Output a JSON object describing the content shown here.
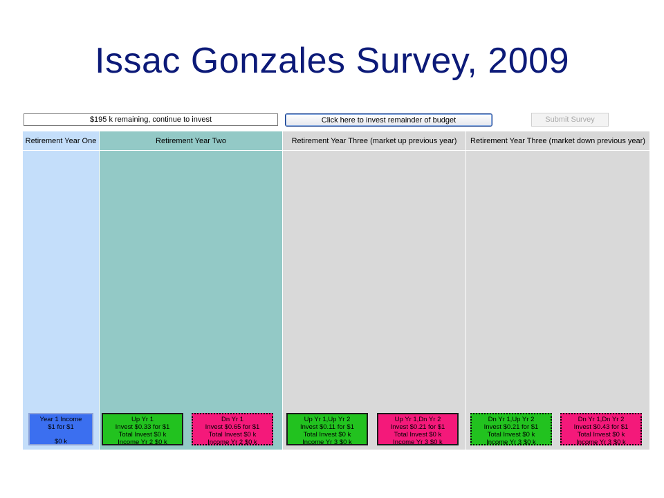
{
  "slide": {
    "title": "Issac Gonzales Survey, 2009"
  },
  "toolbar": {
    "remaining": "$195 k remaining, continue to invest",
    "invest_button": "Click here to invest remainder of budget",
    "submit_button": "Submit Survey"
  },
  "columns": [
    {
      "header": "Retirement Year One",
      "color": "#c4defa"
    },
    {
      "header": "Retirement Year Two",
      "color": "#93c9c6"
    },
    {
      "header": "Retirement Year Three (market up previous year)",
      "color": "#d9d9d9"
    },
    {
      "header": "Retirement Year Three (market down previous year)",
      "color": "#d9d9d9"
    }
  ],
  "cards": {
    "year1": {
      "title": "Year 1 Income",
      "rate": "$1 for $1",
      "amount": "$0 k",
      "color": "#3b6ff0"
    },
    "up1": {
      "title": "Up Yr 1",
      "invest": "Invest $0.33 for $1",
      "total": "Total Invest $0 k",
      "income": "Income Yr 2 $0 k",
      "color": "#22c21f"
    },
    "dn1": {
      "title": "Dn Yr 1",
      "invest": "Invest $0.65 for $1",
      "total": "Total Invest $0 k",
      "income": "Income Yr 2 $0 k",
      "color": "#f4197a"
    },
    "up1up2": {
      "title": "Up Yr 1,Up Yr 2",
      "invest": "Invest $0.11 for $1",
      "total": "Total Invest $0 k",
      "income": "Income Yr 3 $0 k",
      "color": "#22c21f"
    },
    "up1dn2": {
      "title": "Up Yr 1,Dn Yr 2",
      "invest": "Invest $0.21 for $1",
      "total": "Total Invest $0 k",
      "income": "Income Yr 3 $0 k",
      "color": "#f4197a"
    },
    "dn1up2": {
      "title": "Dn Yr 1,Up Yr 2",
      "invest": "Invest $0.21 for $1",
      "total": "Total Invest $0 k",
      "income": "Income Yr 3 $0 k",
      "color": "#22c21f"
    },
    "dn1dn2": {
      "title": "Dn Yr 1,Dn Yr 2",
      "invest": "Invest $0.43 for $1",
      "total": "Total Invest $0 k",
      "income": "Income Yr 3 $0 k",
      "color": "#f4197a"
    }
  }
}
